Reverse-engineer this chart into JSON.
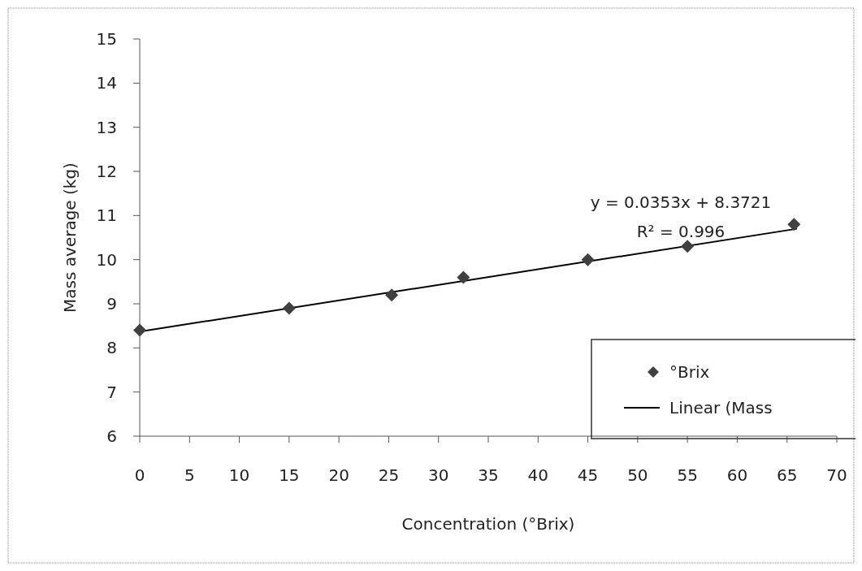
{
  "chart_data": {
    "type": "scatter",
    "xlabel": "Concentration (°Brix)",
    "ylabel": "Mass average (kg)",
    "xlim": [
      0,
      70
    ],
    "xticks": [
      0,
      5,
      10,
      15,
      20,
      25,
      30,
      35,
      40,
      45,
      50,
      55,
      60,
      65,
      70
    ],
    "ylim": [
      6,
      15
    ],
    "yticks": [
      6,
      7,
      8,
      9,
      10,
      11,
      12,
      13,
      14,
      15
    ],
    "grid": false,
    "legend": "right",
    "series": [
      {
        "name": "°Brix",
        "marker": "diamond",
        "color": "#404040",
        "x": [
          0,
          15,
          25.3,
          32.5,
          45,
          55,
          65.7
        ],
        "values": [
          8.4,
          8.9,
          9.2,
          9.6,
          10.0,
          10.3,
          10.8
        ]
      },
      {
        "name": "Linear (Mass",
        "type": "line",
        "color": "#000000",
        "line_style": "solid",
        "x": [
          0,
          66
        ],
        "values": [
          8.37,
          10.7
        ]
      }
    ],
    "annotations": [
      "y = 0.0353x + 8.3721",
      "R² = 0.996"
    ]
  }
}
